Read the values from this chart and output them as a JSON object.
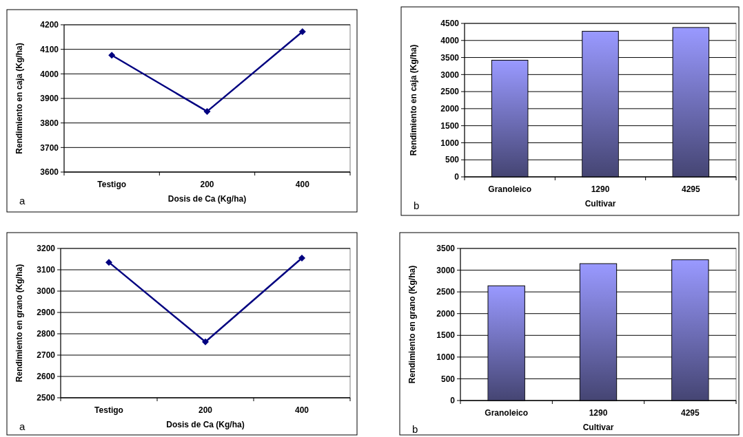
{
  "chart_data": [
    {
      "type": "line",
      "xlabel": "Dosis de Ca (Kg/ha)",
      "ylabel": "Rendimiento en caja (Kg/ha)",
      "categories": [
        "Testigo",
        "200",
        "400"
      ],
      "series": [
        {
          "color": "#000080",
          "values": [
            4076,
            3847,
            4172
          ]
        }
      ],
      "ylim": [
        3600,
        4200
      ],
      "yticks": [
        3600,
        3700,
        3800,
        3900,
        4000,
        4100,
        4200
      ],
      "grid": "y",
      "marker": "diamond",
      "annotations": [
        "a"
      ]
    },
    {
      "type": "bar",
      "xlabel": "Cultivar",
      "ylabel": "Rendimiento en caja (Kg/ha)",
      "categories": [
        "Granoleico",
        "1290",
        "4295"
      ],
      "series": [
        {
          "color": "#9999ff",
          "values": [
            3420,
            4270,
            4380
          ]
        }
      ],
      "ylim": [
        0,
        4500
      ],
      "yticks": [
        0,
        500,
        1000,
        1500,
        2000,
        2500,
        3000,
        3500,
        4000,
        4500
      ],
      "grid": "y",
      "annotations": [
        "b"
      ]
    },
    {
      "type": "line",
      "xlabel": "Dosis de Ca (Kg/ha)",
      "ylabel": "Rendimiento en grano (Kg/ha)",
      "categories": [
        "Testigo",
        "200",
        "400"
      ],
      "series": [
        {
          "color": "#000080",
          "values": [
            3135,
            2762,
            3155
          ]
        }
      ],
      "ylim": [
        2500,
        3200
      ],
      "yticks": [
        2500,
        2600,
        2700,
        2800,
        2900,
        3000,
        3100,
        3200
      ],
      "grid": "y",
      "marker": "diamond",
      "annotations": [
        "a"
      ]
    },
    {
      "type": "bar",
      "xlabel": "Cultivar",
      "ylabel": "Rendimiento en grano (Kg/ha)",
      "categories": [
        "Granoleico",
        "1290",
        "4295"
      ],
      "series": [
        {
          "color": "#9999ff",
          "values": [
            2640,
            3150,
            3240
          ]
        }
      ],
      "ylim": [
        0,
        3500
      ],
      "yticks": [
        0,
        500,
        1000,
        1500,
        2000,
        2500,
        3000,
        3500
      ],
      "grid": "y",
      "annotations": [
        "b"
      ]
    }
  ]
}
